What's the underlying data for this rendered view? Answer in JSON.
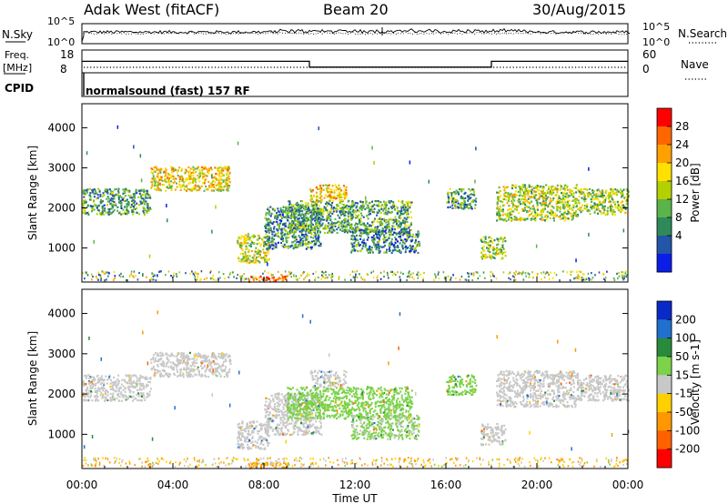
{
  "header": {
    "station": "Adak West (fitACF)",
    "beam": "Beam 20",
    "date": "30/Aug/2015"
  },
  "nsky_panel": {
    "left_label": "N.Sky",
    "right_label": "N.Search",
    "ticks_left": [
      "10^5",
      "10^0"
    ],
    "ticks_right": [
      "10^5",
      "10^0"
    ]
  },
  "freq_panel": {
    "left_label": "Freq.",
    "left_unit": "[MHz]",
    "ticks_left": [
      "18",
      "8"
    ],
    "right_label": "Nave",
    "ticks_right": [
      "60",
      "0"
    ]
  },
  "cpid": {
    "label": "CPID",
    "value": "normalsound (fast) 157 RF"
  },
  "colorbars": {
    "power": {
      "label": "Power [dB]",
      "ticks": [
        "28",
        "24",
        "20",
        "16",
        "12",
        "8",
        "4"
      ],
      "colors": [
        "#ff0000",
        "#ff6600",
        "#ffa000",
        "#ffe000",
        "#b4d000",
        "#5ab44a",
        "#2f8a5a",
        "#2355a8",
        "#0a1ee8"
      ]
    },
    "velocity": {
      "label": "Velocity [m s-1]",
      "ticks": [
        "200",
        "100",
        "50",
        "15",
        "-15",
        "-50",
        "-100",
        "-200"
      ],
      "colors": [
        "#0a2ac8",
        "#2070d0",
        "#2a8a3c",
        "#7cd24a",
        "#c8c8c8",
        "#ffd000",
        "#ff9800",
        "#ff6000",
        "#ff0000"
      ]
    }
  },
  "axes": {
    "y_label": "Slant Range [km]",
    "y_ticks": [
      "4000",
      "3000",
      "2000",
      "1000"
    ],
    "x_label": "Time UT",
    "x_ticks": [
      "00:00",
      "04:00",
      "08:00",
      "12:00",
      "16:00",
      "20:00",
      "00:00"
    ]
  },
  "chart_data": [
    {
      "type": "line",
      "title": "N.Sky / N.Search",
      "x_range": [
        "00:00",
        "24:00"
      ],
      "y_scale": "log",
      "ylim": [
        1,
        100000
      ],
      "series": [
        {
          "name": "N.Sky",
          "style": "solid"
        },
        {
          "name": "N.Search",
          "style": "dotted"
        }
      ]
    },
    {
      "type": "line",
      "title": "Freq. / Nave",
      "series": [
        {
          "name": "Freq.",
          "style": "solid",
          "unit": "MHz",
          "segments": [
            {
              "start": "00:00",
              "end": "10:00",
              "value": 14
            },
            {
              "start": "10:00",
              "end": "18:00",
              "value": 10
            },
            {
              "start": "18:00",
              "end": "24:00",
              "value": 14
            }
          ]
        },
        {
          "name": "Nave",
          "style": "dotted",
          "value": 15
        }
      ]
    },
    {
      "type": "heatmap",
      "title": "Power",
      "xlabel": "Time UT",
      "ylabel": "Slant Range [km]",
      "xlim": [
        0,
        24
      ],
      "ylim": [
        150,
        4600
      ],
      "units": "dB",
      "clim": [
        0,
        30
      ],
      "regions": [
        {
          "t0": 0.0,
          "t1": 3.0,
          "r0": 1850,
          "r1": 2500,
          "value": 10
        },
        {
          "t0": 3.0,
          "t1": 6.5,
          "r0": 2450,
          "r1": 3050,
          "value": 18
        },
        {
          "t0": 6.8,
          "t1": 8.2,
          "r0": 650,
          "r1": 1350,
          "value": 16
        },
        {
          "t0": 8.0,
          "t1": 10.5,
          "r0": 1000,
          "r1": 2050,
          "value": 9
        },
        {
          "t0": 9.0,
          "t1": 14.5,
          "r0": 1400,
          "r1": 2200,
          "value": 11
        },
        {
          "t0": 10.0,
          "t1": 11.6,
          "r0": 2200,
          "r1": 2600,
          "value": 19
        },
        {
          "t0": 11.8,
          "t1": 14.8,
          "r0": 900,
          "r1": 1500,
          "value": 8
        },
        {
          "t0": 16.0,
          "t1": 17.3,
          "r0": 2000,
          "r1": 2500,
          "value": 10
        },
        {
          "t0": 17.5,
          "t1": 18.6,
          "r0": 750,
          "r1": 1300,
          "value": 14
        },
        {
          "t0": 18.2,
          "t1": 21.8,
          "r0": 1700,
          "r1": 2600,
          "value": 15
        },
        {
          "t0": 21.8,
          "t1": 24.0,
          "r0": 1850,
          "r1": 2500,
          "value": 14
        },
        {
          "t0": 7.3,
          "t1": 9.0,
          "r0": 180,
          "r1": 320,
          "value": 26
        }
      ]
    },
    {
      "type": "heatmap",
      "title": "Velocity",
      "xlabel": "Time UT",
      "ylabel": "Slant Range [km]",
      "xlim": [
        0,
        24
      ],
      "ylim": [
        150,
        4600
      ],
      "units": "m s-1",
      "clim": [
        -250,
        250
      ],
      "regions": [
        {
          "t0": 0.0,
          "t1": 3.0,
          "r0": 1850,
          "r1": 2500,
          "value": 0
        },
        {
          "t0": 3.0,
          "t1": 6.5,
          "r0": 2450,
          "r1": 3050,
          "value": 0
        },
        {
          "t0": 6.8,
          "t1": 8.2,
          "r0": 650,
          "r1": 1350,
          "value": 0
        },
        {
          "t0": 8.0,
          "t1": 10.5,
          "r0": 1000,
          "r1": 2050,
          "value": 0
        },
        {
          "t0": 9.0,
          "t1": 14.5,
          "r0": 1400,
          "r1": 2200,
          "value": 30
        },
        {
          "t0": 10.0,
          "t1": 11.6,
          "r0": 2200,
          "r1": 2600,
          "value": 0
        },
        {
          "t0": 11.8,
          "t1": 14.8,
          "r0": 900,
          "r1": 1500,
          "value": 20
        },
        {
          "t0": 16.0,
          "t1": 17.3,
          "r0": 2000,
          "r1": 2500,
          "value": 40
        },
        {
          "t0": 17.5,
          "t1": 18.6,
          "r0": 750,
          "r1": 1300,
          "value": 0
        },
        {
          "t0": 18.2,
          "t1": 21.8,
          "r0": 1700,
          "r1": 2600,
          "value": 0
        },
        {
          "t0": 21.8,
          "t1": 24.0,
          "r0": 1850,
          "r1": 2500,
          "value": 0
        },
        {
          "t0": 7.3,
          "t1": 9.0,
          "r0": 180,
          "r1": 320,
          "value": -70
        }
      ]
    }
  ]
}
